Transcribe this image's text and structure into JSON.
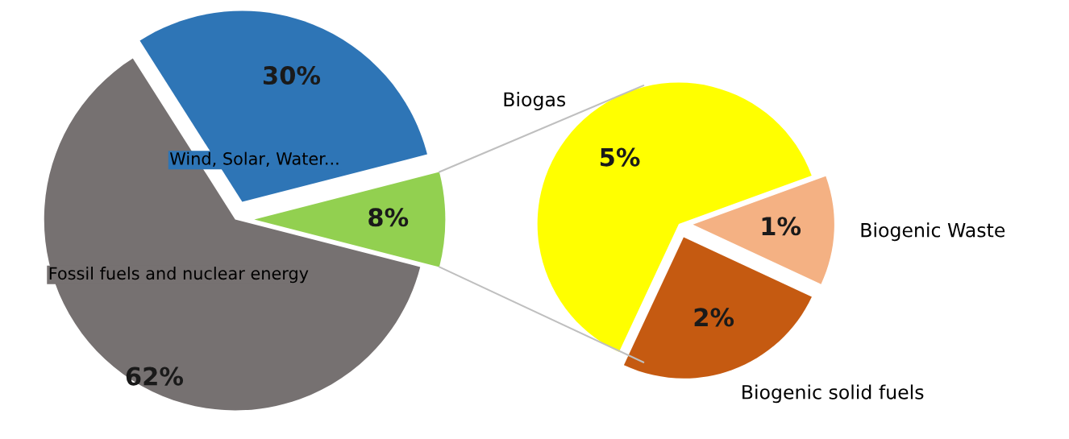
{
  "chart_data": [
    {
      "type": "pie",
      "categories": [
        null,
        "Wind, Solar, Water...",
        "Fossil fuels and nuclear energy"
      ],
      "values": [
        8,
        30,
        62
      ],
      "colors": [
        "#92d050",
        "#2e75b6",
        "#767171"
      ],
      "value_labels": [
        "8%",
        "30%",
        "62%"
      ]
    },
    {
      "type": "pie",
      "categories": [
        "Biogenic solid fuels",
        "Biogenic Waste",
        "Biogas"
      ],
      "values": [
        2,
        1,
        5
      ],
      "colors": [
        "#c55a11",
        "#f4b183",
        "#ffff00"
      ],
      "value_labels": [
        "2%",
        "1%",
        "5%"
      ]
    }
  ]
}
